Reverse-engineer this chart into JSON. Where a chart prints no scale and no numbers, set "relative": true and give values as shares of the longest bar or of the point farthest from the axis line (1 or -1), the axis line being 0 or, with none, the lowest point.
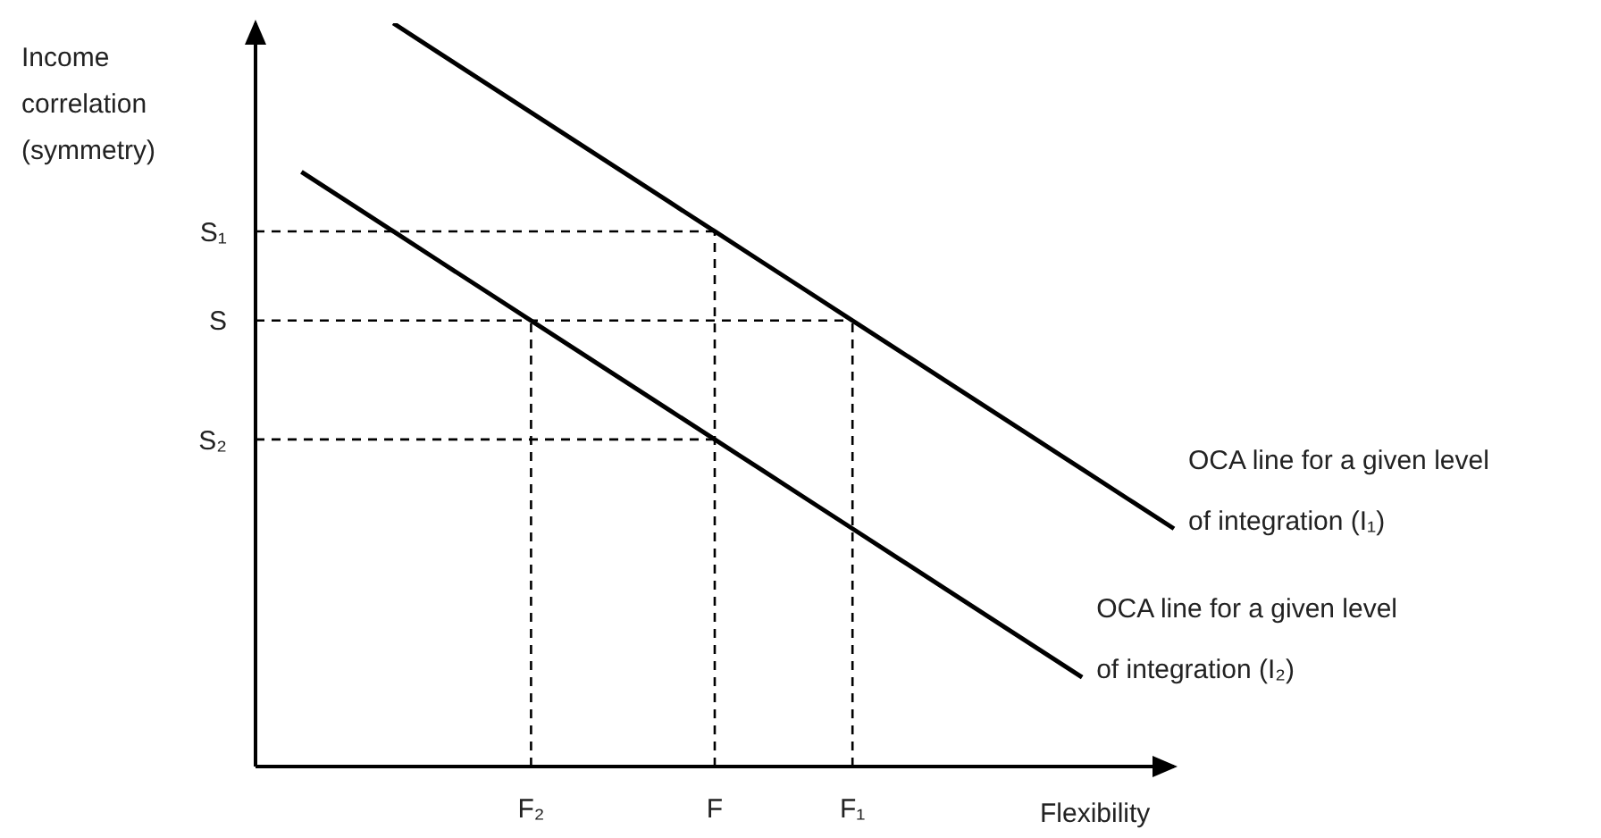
{
  "chart_data": {
    "type": "line",
    "xlabel": "Flexibility",
    "ylabel": "Income correlation (symmetry)",
    "relative": true,
    "marker": "none",
    "line_style": "solid",
    "categories": [
      null,
      null,
      null,
      null,
      null,
      null,
      "F₂",
      null,
      null,
      null,
      "F",
      null,
      null,
      "F₁",
      null,
      null,
      null,
      null,
      null,
      null,
      null
    ],
    "series": [
      {
        "name": "OCA line for a given level of integration (I₁)",
        "color": "#000000",
        "values": [
          null,
          null,
          null,
          1.0,
          0.96,
          0.92,
          0.88,
          0.84,
          0.8,
          0.76,
          0.72,
          0.68,
          0.64,
          0.6,
          0.56,
          0.52,
          0.48,
          0.44,
          0.4,
          0.36,
          0.32
        ]
      },
      {
        "name": "OCA line for a given level of integration (I₂)",
        "color": "#000000",
        "values": [
          null,
          0.8,
          0.76,
          0.72,
          0.68,
          0.64,
          0.6,
          0.56,
          0.52,
          0.48,
          0.44,
          0.4,
          0.36,
          0.32,
          0.28,
          0.24,
          0.2,
          0.16,
          0.12,
          null,
          null
        ]
      }
    ],
    "ref_lines": [
      {
        "axis": "y",
        "value": 0.72,
        "label": "S₁",
        "color": "#000000",
        "line_style": "dashed"
      },
      {
        "axis": "y",
        "value": 0.6,
        "label": "S",
        "color": "#000000",
        "line_style": "dashed"
      },
      {
        "axis": "y",
        "value": 0.44,
        "label": "S₂",
        "color": "#000000",
        "line_style": "dashed"
      },
      {
        "axis": "x",
        "value": "F₂",
        "color": "#000000",
        "line_style": "dashed"
      },
      {
        "axis": "x",
        "value": "F",
        "color": "#000000",
        "line_style": "dashed"
      },
      {
        "axis": "x",
        "value": "F₁",
        "color": "#000000",
        "line_style": "dashed"
      }
    ]
  }
}
